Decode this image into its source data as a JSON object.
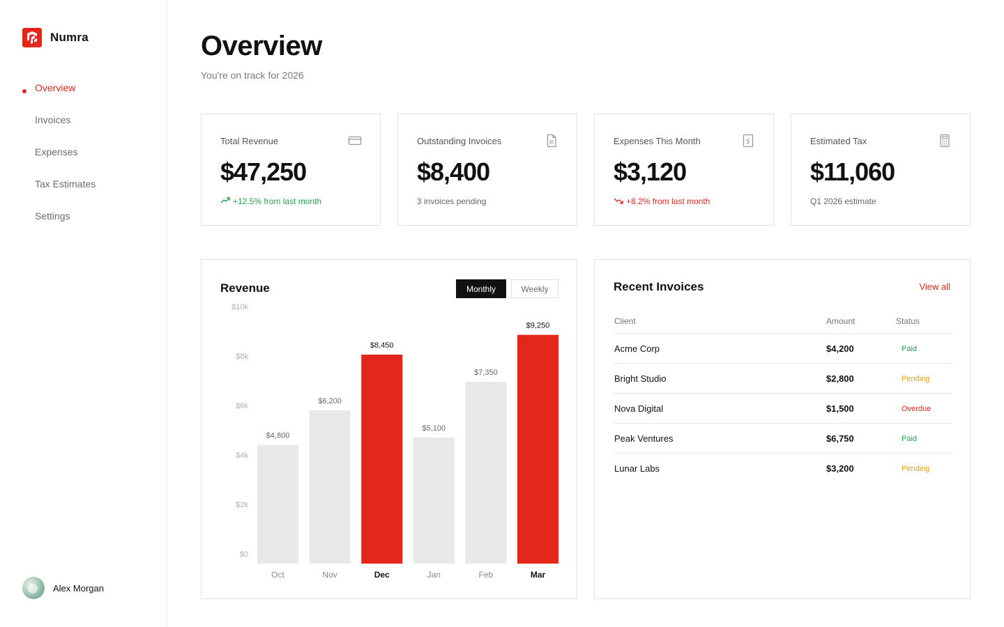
{
  "app": {
    "name": "Numra"
  },
  "sidebar": {
    "items": [
      {
        "label": "Overview",
        "active": true
      },
      {
        "label": "Invoices",
        "active": false
      },
      {
        "label": "Expenses",
        "active": false
      },
      {
        "label": "Tax Estimates",
        "active": false
      },
      {
        "label": "Settings",
        "active": false
      }
    ],
    "user": {
      "name": "Alex Morgan"
    }
  },
  "header": {
    "title": "Overview",
    "subtitle": "You're on track for 2026"
  },
  "stats": [
    {
      "label": "Total Revenue",
      "value": "$47,250",
      "note": "+12.5% from last month",
      "trend": "up",
      "icon": "credit-card-icon"
    },
    {
      "label": "Outstanding Invoices",
      "value": "$8,400",
      "note": "3 invoices pending",
      "trend": "none",
      "icon": "document-icon"
    },
    {
      "label": "Expenses This Month",
      "value": "$3,120",
      "note": "+8.2% from last month",
      "trend": "down",
      "icon": "dollar-receipt-icon"
    },
    {
      "label": "Estimated Tax",
      "value": "$11,060",
      "note": "Q1 2026 estimate",
      "trend": "none",
      "icon": "calculator-icon"
    }
  ],
  "revenue_panel": {
    "title": "Revenue",
    "toggle_monthly": "Monthly",
    "toggle_weekly": "Weekly",
    "selected": "Monthly"
  },
  "chart_data": {
    "type": "bar",
    "title": "Revenue",
    "categories": [
      "Oct",
      "Nov",
      "Dec",
      "Jan",
      "Feb",
      "Mar"
    ],
    "values": [
      4800,
      6200,
      8450,
      5100,
      7350,
      9250
    ],
    "data_labels": [
      "$4,800",
      "$6,200",
      "$8,450",
      "$5,100",
      "$7,350",
      "$9,250"
    ],
    "highlighted": [
      false,
      false,
      true,
      false,
      false,
      true
    ],
    "y_ticks": [
      0,
      2000,
      4000,
      6000,
      8000,
      10000
    ],
    "y_tick_labels": [
      "$0",
      "$2k",
      "$4k",
      "$6k",
      "$8k",
      "$10k"
    ],
    "ylim": [
      0,
      10000
    ],
    "grid": false,
    "colors": {
      "highlight": "#e5261a",
      "default": "#e8e8e8"
    }
  },
  "invoices_panel": {
    "title": "Recent Invoices",
    "view_all": "View all",
    "columns": [
      "Client",
      "Amount",
      "Status"
    ],
    "rows": [
      {
        "client": "Acme Corp",
        "amount": "$4,200",
        "status": "Paid"
      },
      {
        "client": "Bright Studio",
        "amount": "$2,800",
        "status": "Pending"
      },
      {
        "client": "Nova Digital",
        "amount": "$1,500",
        "status": "Overdue"
      },
      {
        "client": "Peak Ventures",
        "amount": "$6,750",
        "status": "Paid"
      },
      {
        "client": "Lunar Labs",
        "amount": "$3,200",
        "status": "Pending"
      }
    ],
    "status_colors": {
      "Paid": "#1fa64a",
      "Pending": "#f0a000",
      "Overdue": "#e5261a"
    }
  },
  "colors": {
    "accent": "#e5261a",
    "positive": "#1fa64a",
    "warning": "#f0a000"
  }
}
